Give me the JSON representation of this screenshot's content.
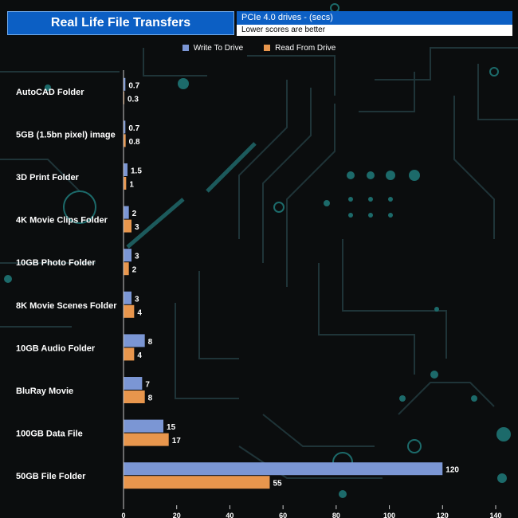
{
  "header": {
    "title": "Real Life File Transfers",
    "subtitle_line1": "PCIe 4.0 drives - (secs)",
    "subtitle_line2": "Lower scores are better"
  },
  "chart_data": {
    "type": "bar",
    "orientation": "horizontal",
    "categories": [
      "AutoCAD Folder",
      "5GB (1.5bn pixel) image",
      "3D Print Folder",
      "4K Movie Clips Folder",
      "10GB Photo Folder",
      "8K Movie Scenes Folder",
      "10GB Audio Folder",
      "BluRay Movie",
      "100GB Data File",
      "50GB File Folder"
    ],
    "series": [
      {
        "name": "Write To  Drive",
        "color": "#7b96d4",
        "values": [
          0.7,
          0.7,
          1.5,
          2,
          3,
          3,
          8,
          7,
          15,
          120
        ]
      },
      {
        "name": "Read From  Drive",
        "color": "#e8964d",
        "values": [
          0.3,
          0.8,
          1,
          3,
          2,
          4,
          4,
          8,
          17,
          55
        ]
      }
    ],
    "xlim": [
      0,
      140
    ],
    "xticks": [
      0,
      20,
      40,
      60,
      80,
      100,
      120,
      140
    ],
    "legend_position": "top-center",
    "grid": false
  }
}
